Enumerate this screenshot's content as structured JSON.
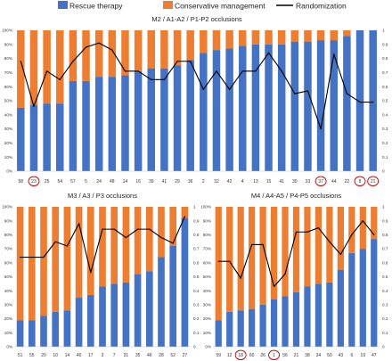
{
  "legend": {
    "placement": "top-center",
    "items": [
      {
        "label": "Rescue therapy",
        "color": "#4472c4",
        "kind": "box"
      },
      {
        "label": "Conservative management",
        "color": "#ed7d31",
        "kind": "box"
      },
      {
        "label": "Randomization",
        "color": "#000000",
        "kind": "line"
      }
    ]
  },
  "colors": {
    "rescue": "#4472c4",
    "conservative": "#ed7d31",
    "randomization": "#000000",
    "highlight_circle": "#c00000"
  },
  "chart_data": [
    {
      "type": "bar",
      "stacked": true,
      "title": "M2 / A1-A2 / P1-P2 occlusions",
      "categories": [
        "58",
        "23",
        "25",
        "54",
        "57",
        "5",
        "24",
        "48",
        "14",
        "16",
        "39",
        "41",
        "29",
        "36",
        "2",
        "32",
        "42",
        "4",
        "13",
        "15",
        "41",
        "30",
        "33",
        "37",
        "44",
        "22",
        "8",
        "21"
      ],
      "circled": [
        "23",
        "37",
        "8",
        "21"
      ],
      "y_left_ticks": [
        "0%",
        "10%",
        "20%",
        "30%",
        "40%",
        "50%",
        "60%",
        "70%",
        "80%",
        "90%",
        "100%"
      ],
      "y_right_ticks": [
        "0",
        "0.1",
        "0.2",
        "0.3",
        "0.4",
        "0.5",
        "0.6",
        "0.7",
        "0.8",
        "0.9",
        "1"
      ],
      "ylim": [
        0,
        1
      ],
      "grid": false,
      "series": [
        {
          "name": "Rescue therapy",
          "values": [
            0.45,
            0.47,
            0.48,
            0.48,
            0.64,
            0.64,
            0.67,
            0.67,
            0.68,
            0.71,
            0.73,
            0.73,
            0.75,
            0.79,
            0.84,
            0.86,
            0.87,
            0.89,
            0.9,
            0.9,
            0.9,
            0.92,
            0.92,
            0.93,
            0.93,
            0.96,
            1.0,
            1.0
          ]
        },
        {
          "name": "Conservative management",
          "values": [
            0.55,
            0.53,
            0.52,
            0.52,
            0.36,
            0.36,
            0.33,
            0.33,
            0.32,
            0.29,
            0.27,
            0.27,
            0.25,
            0.21,
            0.16,
            0.14,
            0.13,
            0.11,
            0.1,
            0.1,
            0.1,
            0.08,
            0.08,
            0.07,
            0.07,
            0.04,
            0.0,
            0.0
          ]
        },
        {
          "name": "Randomization",
          "kind": "line",
          "values": [
            0.78,
            0.46,
            0.71,
            0.65,
            0.78,
            0.88,
            0.91,
            0.86,
            0.71,
            0.71,
            0.65,
            0.65,
            0.78,
            0.78,
            0.58,
            0.71,
            0.58,
            0.71,
            0.71,
            0.84,
            0.71,
            0.55,
            0.57,
            0.3,
            0.83,
            0.55,
            0.49,
            0.49
          ]
        }
      ]
    },
    {
      "type": "bar",
      "stacked": true,
      "title": "M3 / A3 / P3 occlusions",
      "categories": [
        "51",
        "55",
        "20",
        "10",
        "14",
        "40",
        "17",
        "3",
        "7",
        "31",
        "35",
        "46",
        "28",
        "52",
        "27"
      ],
      "circled": [],
      "y_left_ticks": [
        "0%",
        "10%",
        "20%",
        "30%",
        "40%",
        "50%",
        "60%",
        "70%",
        "80%",
        "90%",
        "100%"
      ],
      "y_right_ticks": [
        "0",
        "0.1",
        "0.2",
        "0.3",
        "0.4",
        "0.5",
        "0.6",
        "0.7",
        "0.8",
        "0.9",
        "1"
      ],
      "ylim": [
        0,
        1
      ],
      "grid": false,
      "series": [
        {
          "name": "Rescue therapy",
          "values": [
            0.19,
            0.19,
            0.22,
            0.25,
            0.26,
            0.35,
            0.37,
            0.43,
            0.45,
            0.46,
            0.52,
            0.54,
            0.64,
            0.72,
            0.92
          ]
        },
        {
          "name": "Conservative management",
          "values": [
            0.81,
            0.81,
            0.78,
            0.75,
            0.74,
            0.65,
            0.63,
            0.57,
            0.55,
            0.54,
            0.48,
            0.46,
            0.36,
            0.28,
            0.08
          ]
        },
        {
          "name": "Randomization",
          "kind": "line",
          "values": [
            0.64,
            0.64,
            0.64,
            0.75,
            0.72,
            0.88,
            0.53,
            0.84,
            0.84,
            0.78,
            0.84,
            0.84,
            0.78,
            0.74,
            0.93
          ]
        }
      ]
    },
    {
      "type": "bar",
      "stacked": true,
      "title": "M4 / A4-A5 / P4-P5 occlusions",
      "categories": [
        "59",
        "12",
        "18",
        "60",
        "26",
        "1",
        "56",
        "21",
        "38",
        "34",
        "50",
        "43",
        "6",
        "19",
        "47"
      ],
      "circled": [
        "18",
        "1"
      ],
      "y_left_ticks": [
        "0%",
        "10%",
        "20%",
        "30%",
        "40%",
        "50%",
        "60%",
        "70%",
        "80%",
        "90%",
        "100%"
      ],
      "y_right_ticks": [
        "0",
        "0.1",
        "0.2",
        "0.3",
        "0.4",
        "0.5",
        "0.6",
        "0.7",
        "0.8",
        "0.9",
        "1"
      ],
      "ylim": [
        0,
        1
      ],
      "grid": false,
      "series": [
        {
          "name": "Rescue therapy",
          "values": [
            0.19,
            0.25,
            0.26,
            0.27,
            0.3,
            0.34,
            0.36,
            0.39,
            0.43,
            0.45,
            0.46,
            0.55,
            0.67,
            0.7,
            0.77
          ]
        },
        {
          "name": "Conservative management",
          "values": [
            0.81,
            0.75,
            0.74,
            0.73,
            0.7,
            0.66,
            0.64,
            0.61,
            0.57,
            0.55,
            0.54,
            0.45,
            0.33,
            0.3,
            0.23
          ]
        },
        {
          "name": "Randomization",
          "kind": "line",
          "values": [
            0.61,
            0.61,
            0.49,
            0.73,
            0.73,
            0.43,
            0.52,
            0.82,
            0.82,
            0.85,
            0.75,
            0.66,
            0.8,
            0.9,
            0.8
          ]
        }
      ]
    }
  ]
}
